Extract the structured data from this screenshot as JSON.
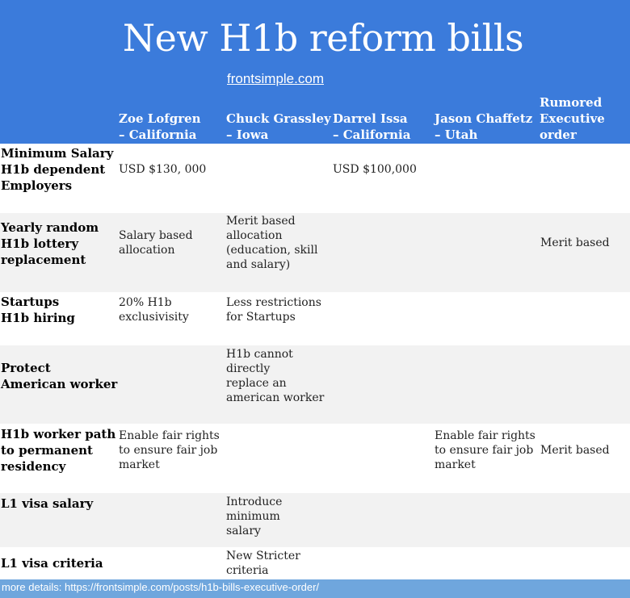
{
  "title": "New H1b reform bills",
  "site": "frontsimple.com",
  "columns": [
    "Zoe Lofgren\n– California",
    "Chuck Grassley\n– Iowa",
    "Darrel Issa\n– California",
    "Jason Chaffetz\n– Utah",
    "Rumored\nExecutive\norder"
  ],
  "rows": [
    {
      "label": "Minimum Salary\nH1b dependent\nEmployers",
      "cells": [
        "USD $130, 000",
        "",
        "USD $100,000",
        "",
        ""
      ]
    },
    {
      "label": "Yearly random\nH1b lottery\nreplacement",
      "cells": [
        "Salary based\nallocation",
        "Merit based\nallocation\n(education, skill\nand salary)",
        "",
        "",
        "Merit based"
      ]
    },
    {
      "label": "Startups\nH1b hiring",
      "cells": [
        "20% H1b\nexclusivisity",
        "Less restrictions\nfor Startups",
        "",
        "",
        ""
      ]
    },
    {
      "label": "Protect\nAmerican worker",
      "cells": [
        "",
        "H1b cannot\ndirectly\nreplace an\namerican worker",
        "",
        "",
        ""
      ]
    },
    {
      "label": "H1b worker path\nto permanent\nresidency",
      "cells": [
        "Enable fair rights\nto ensure fair job\nmarket",
        "",
        "",
        "Enable fair rights\nto ensure fair job\nmarket",
        "Merit based"
      ]
    },
    {
      "label": "L1 visa salary",
      "cells": [
        "",
        "Introduce\nminimum\nsalary",
        "",
        "",
        ""
      ]
    },
    {
      "label": "L1 visa criteria",
      "cells": [
        "",
        "New Stricter\ncriteria",
        "",
        "",
        ""
      ]
    }
  ],
  "footer": "more details: https://frontsimple.com/posts/h1b-bills-executive-order/"
}
